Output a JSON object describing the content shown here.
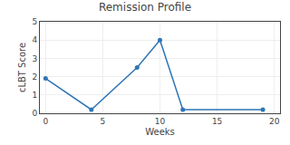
{
  "chart_data": {
    "type": "line",
    "title": "Remission Profile",
    "xlabel": "Weeks",
    "ylabel": "cLBT Score",
    "x": [
      0,
      4,
      8,
      10,
      12,
      19
    ],
    "values": [
      1.9,
      0.2,
      2.5,
      4.0,
      0.2,
      0.2
    ],
    "color": "#2E75B6",
    "marker": "circle",
    "xlim": [
      -0.5,
      20.5
    ],
    "ylim": [
      0,
      5
    ],
    "xticks": [
      0,
      5,
      10,
      15,
      20
    ],
    "yticks": [
      0,
      1,
      2,
      3,
      4,
      5
    ],
    "grid": true
  }
}
